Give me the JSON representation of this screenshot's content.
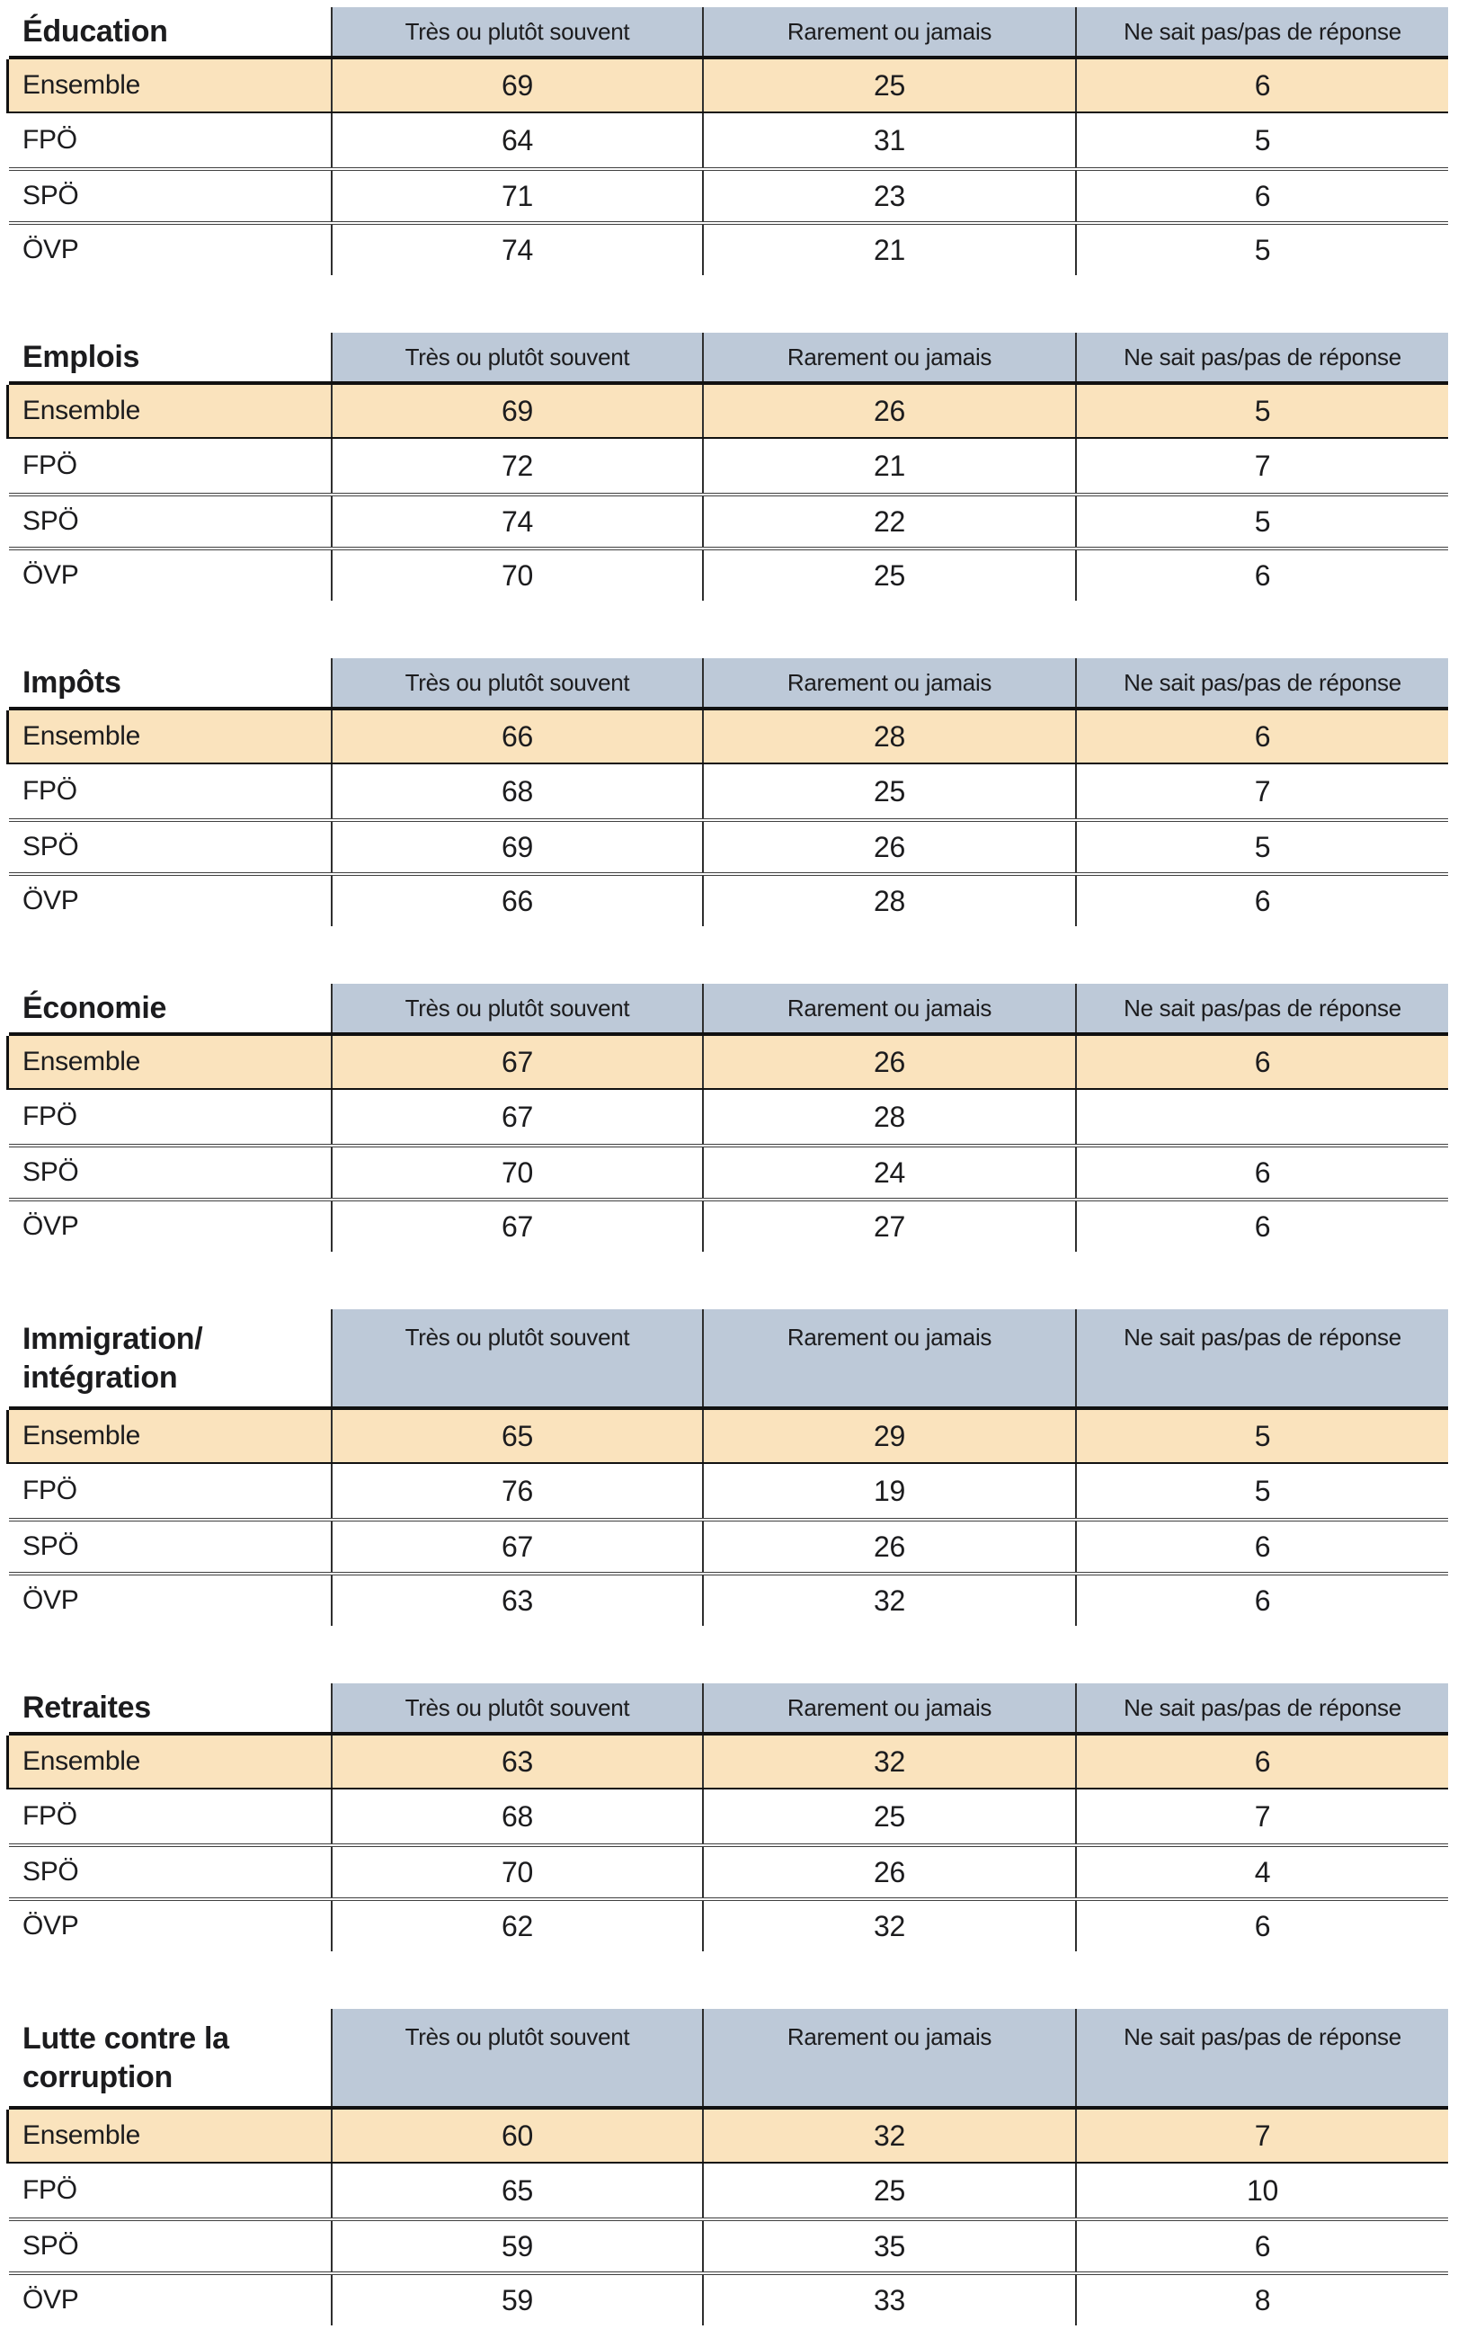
{
  "page": {
    "columns": [
      "Très ou plutôt souvent",
      "Rarement ou jamais",
      "Ne sait pas/pas de réponse"
    ],
    "row_labels": [
      "Ensemble",
      "FPÖ",
      "SPÖ",
      "ÖVP"
    ],
    "colors": {
      "header_bg": "#bdc9d8",
      "ensemble_row_bg": "#fae3bd",
      "text": "#1c1c1e",
      "rule_dark": "#111111",
      "rule_gray": "#3f3f3f"
    },
    "tables": [
      {
        "category": "Éducation",
        "rows": [
          {
            "label": "Ensemble",
            "values": [
              "69",
              "25",
              "6"
            ]
          },
          {
            "label": "FPÖ",
            "values": [
              "64",
              "31",
              "5"
            ]
          },
          {
            "label": "SPÖ",
            "values": [
              "71",
              "23",
              "6"
            ]
          },
          {
            "label": "ÖVP",
            "values": [
              "74",
              "21",
              "5"
            ]
          }
        ]
      },
      {
        "category": "Emplois",
        "rows": [
          {
            "label": "Ensemble",
            "values": [
              "69",
              "26",
              "5"
            ]
          },
          {
            "label": "FPÖ",
            "values": [
              "72",
              "21",
              "7"
            ]
          },
          {
            "label": "SPÖ",
            "values": [
              "74",
              "22",
              "5"
            ]
          },
          {
            "label": "ÖVP",
            "values": [
              "70",
              "25",
              "6"
            ]
          }
        ]
      },
      {
        "category": "Impôts",
        "rows": [
          {
            "label": "Ensemble",
            "values": [
              "66",
              "28",
              "6"
            ]
          },
          {
            "label": "FPÖ",
            "values": [
              "68",
              "25",
              "7"
            ]
          },
          {
            "label": "SPÖ",
            "values": [
              "69",
              "26",
              "5"
            ]
          },
          {
            "label": "ÖVP",
            "values": [
              "66",
              "28",
              "6"
            ]
          }
        ]
      },
      {
        "category": "Économie",
        "rows": [
          {
            "label": "Ensemble",
            "values": [
              "67",
              "26",
              "6"
            ]
          },
          {
            "label": "FPÖ",
            "values": [
              "67",
              "28",
              ""
            ]
          },
          {
            "label": "SPÖ",
            "values": [
              "70",
              "24",
              "6"
            ]
          },
          {
            "label": "ÖVP",
            "values": [
              "67",
              "27",
              "6"
            ]
          }
        ]
      },
      {
        "category": "Immigration/\nintégration",
        "rows": [
          {
            "label": "Ensemble",
            "values": [
              "65",
              "29",
              "5"
            ]
          },
          {
            "label": "FPÖ",
            "values": [
              "76",
              "19",
              "5"
            ]
          },
          {
            "label": "SPÖ",
            "values": [
              "67",
              "26",
              "6"
            ]
          },
          {
            "label": "ÖVP",
            "values": [
              "63",
              "32",
              "6"
            ]
          }
        ]
      },
      {
        "category": "Retraites",
        "rows": [
          {
            "label": "Ensemble",
            "values": [
              "63",
              "32",
              "6"
            ]
          },
          {
            "label": "FPÖ",
            "values": [
              "68",
              "25",
              "7"
            ]
          },
          {
            "label": "SPÖ",
            "values": [
              "70",
              "26",
              "4"
            ]
          },
          {
            "label": "ÖVP",
            "values": [
              "62",
              "32",
              "6"
            ]
          }
        ]
      },
      {
        "category": "Lutte contre la\ncorruption",
        "rows": [
          {
            "label": "Ensemble",
            "values": [
              "60",
              "32",
              "7"
            ]
          },
          {
            "label": "FPÖ",
            "values": [
              "65",
              "25",
              "10"
            ]
          },
          {
            "label": "SPÖ",
            "values": [
              "59",
              "35",
              "6"
            ]
          },
          {
            "label": "ÖVP",
            "values": [
              "59",
              "33",
              "8"
            ]
          }
        ]
      }
    ]
  }
}
